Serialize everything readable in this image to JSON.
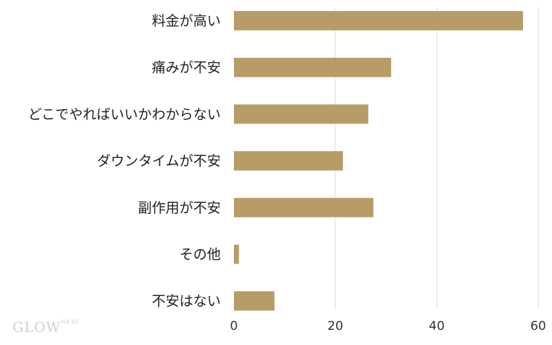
{
  "chart_data": {
    "type": "bar",
    "orientation": "horizontal",
    "categories": [
      "料金が高い",
      "痛みが不安",
      "どこでやればいいかわからない",
      "ダウンタイムが不安",
      "副作用が不安",
      "その他",
      "不安はない"
    ],
    "values": [
      57,
      31,
      26.5,
      21.5,
      27.5,
      1,
      8
    ],
    "xlim": [
      0,
      60
    ],
    "xticks": [
      0,
      20,
      40,
      60
    ],
    "grid": true,
    "bar_color": "#b89c68",
    "grid_color": "#d9d9d9"
  },
  "logo": {
    "text": "GLOW",
    "small_text": "NA VI"
  }
}
